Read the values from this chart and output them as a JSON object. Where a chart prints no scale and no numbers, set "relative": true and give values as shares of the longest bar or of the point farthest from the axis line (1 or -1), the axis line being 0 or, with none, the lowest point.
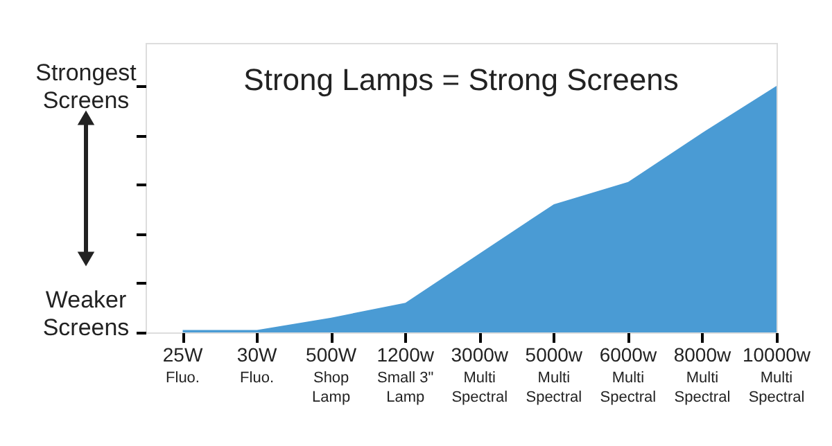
{
  "chart_data": {
    "type": "area",
    "title": "Strong Lamps = Strong Screens",
    "relative": true,
    "grid": false,
    "categories": [
      "25W\nFluo.",
      "30W\nFluo.",
      "500W\nShop\nLamp",
      "1200w\nSmall 3\"\nLamp",
      "3000w\nMulti\nSpectral",
      "5000w\nMulti\nSpectral",
      "6000w\nMulti\nSpectral",
      "8000w\nMulti\nSpectral",
      "10000w\nMulti\nSpectral"
    ],
    "series": [
      {
        "color": "#4a9bd4",
        "values": [
          0.01,
          0.01,
          0.06,
          0.12,
          0.32,
          0.52,
          0.61,
          0.81,
          1
        ]
      }
    ],
    "annotations": [
      "Strongest Screens",
      "Weaker Screens"
    ]
  }
}
